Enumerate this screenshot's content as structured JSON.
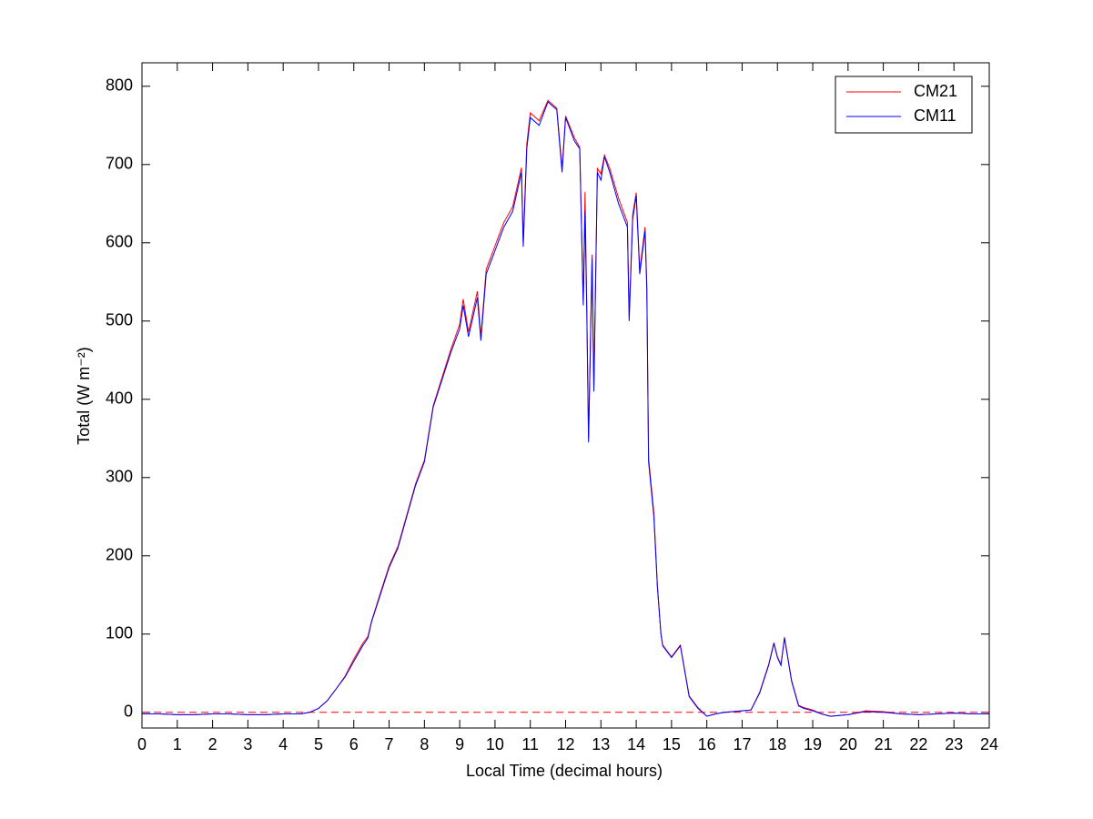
{
  "chart_data": {
    "type": "line",
    "xlabel": "Local Time (decimal hours)",
    "ylabel": "Total (W m⁻²)",
    "x": [
      0,
      0.5,
      1,
      1.5,
      2,
      2.5,
      3,
      3.5,
      4,
      4.5,
      4.75,
      5,
      5.25,
      5.5,
      5.75,
      6,
      6.25,
      6.4,
      6.5,
      6.75,
      7,
      7.25,
      7.5,
      7.75,
      8,
      8.25,
      8.5,
      8.75,
      9,
      9.1,
      9.25,
      9.5,
      9.6,
      9.75,
      10,
      10.25,
      10.5,
      10.75,
      10.8,
      10.9,
      11,
      11.25,
      11.5,
      11.75,
      11.9,
      12,
      12.25,
      12.4,
      12.5,
      12.55,
      12.6,
      12.65,
      12.75,
      12.8,
      12.9,
      13,
      13.1,
      13.25,
      13.5,
      13.75,
      13.8,
      13.9,
      14,
      14.1,
      14.25,
      14.3,
      14.35,
      14.5,
      14.6,
      14.7,
      14.75,
      15,
      15.25,
      15.5,
      15.75,
      16,
      16.25,
      16.5,
      17,
      17.25,
      17.5,
      17.75,
      17.9,
      18,
      18.1,
      18.2,
      18.4,
      18.6,
      18.75,
      19,
      19.25,
      19.5,
      20,
      20.5,
      21,
      21.5,
      22,
      22.5,
      23,
      23.5,
      24
    ],
    "series": [
      {
        "name": "CM21",
        "color": "#ff0000",
        "values": [
          -2,
          -2,
          -3,
          -3,
          -2,
          -2,
          -3,
          -3,
          -2,
          -2,
          0,
          5,
          15,
          30,
          46,
          68,
          88,
          97,
          116,
          152,
          187,
          212,
          252,
          292,
          322,
          392,
          428,
          464,
          496,
          528,
          486,
          538,
          480,
          566,
          596,
          626,
          646,
          696,
          600,
          726,
          766,
          756,
          782,
          772,
          695,
          762,
          734,
          722,
          525,
          665,
          515,
          350,
          585,
          415,
          695,
          688,
          712,
          695,
          657,
          626,
          505,
          636,
          664,
          565,
          620,
          545,
          325,
          255,
          162,
          101,
          86,
          71,
          86,
          21,
          6,
          -5,
          -2,
          0,
          2,
          3,
          26,
          61,
          89,
          71,
          61,
          96,
          41,
          9,
          6,
          3,
          -2,
          -5,
          -3,
          2,
          1,
          -2,
          -3,
          -2,
          -1,
          -2,
          -2
        ]
      },
      {
        "name": "CM11",
        "color": "#0000ff",
        "values": [
          -2,
          -2,
          -3,
          -3,
          -2,
          -2,
          -3,
          -3,
          -2,
          -2,
          0,
          5,
          15,
          30,
          45,
          65,
          85,
          95,
          115,
          150,
          185,
          210,
          250,
          290,
          320,
          390,
          425,
          460,
          490,
          520,
          480,
          530,
          475,
          560,
          590,
          620,
          640,
          690,
          595,
          720,
          760,
          750,
          780,
          770,
          690,
          760,
          730,
          720,
          520,
          640,
          510,
          345,
          580,
          410,
          690,
          680,
          710,
          690,
          650,
          620,
          500,
          630,
          660,
          560,
          615,
          540,
          320,
          250,
          160,
          100,
          85,
          70,
          85,
          20,
          5,
          -5,
          -2,
          0,
          2,
          3,
          25,
          60,
          88,
          70,
          60,
          95,
          40,
          8,
          5,
          2,
          -2,
          -5,
          -3,
          1,
          0,
          -2,
          -3,
          -2,
          -1,
          -2,
          -2
        ]
      }
    ],
    "reference_line": {
      "y": 0,
      "color": "#ff0000",
      "style": "dashed"
    },
    "xlim": [
      0,
      24
    ],
    "xticks": [
      0,
      1,
      2,
      3,
      4,
      5,
      6,
      7,
      8,
      9,
      10,
      11,
      12,
      13,
      14,
      15,
      16,
      17,
      18,
      19,
      20,
      21,
      22,
      23,
      24
    ],
    "ylim": [
      -20,
      830
    ],
    "yticks": [
      0,
      100,
      200,
      300,
      400,
      500,
      600,
      700,
      800
    ],
    "legend": "northeast",
    "grid": false
  }
}
